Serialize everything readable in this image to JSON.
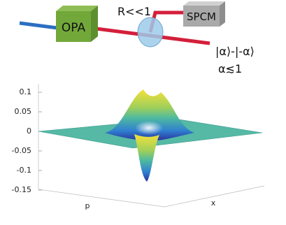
{
  "diagram": {
    "source": "OPA",
    "splitter": "R<<1",
    "detector": "SPCM",
    "state": "|α⟩-|-α⟩",
    "amplitude": "α≲1"
  },
  "plot": {
    "zticks": [
      0.1,
      0.05,
      0,
      -0.05,
      -0.1,
      -0.15
    ],
    "xlabel": "x",
    "ylabel": "p"
  }
}
